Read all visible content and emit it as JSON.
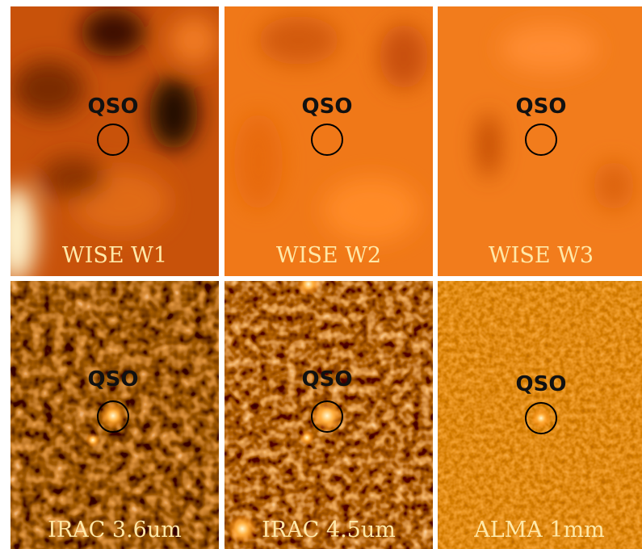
{
  "panels": [
    {
      "label": "WISE W1",
      "marker": "QSO"
    },
    {
      "label": "WISE W2",
      "marker": "QSO"
    },
    {
      "label": "WISE W3",
      "marker": "QSO"
    },
    {
      "label": "IRAC 3.6um",
      "marker": "QSO"
    },
    {
      "label": "IRAC 4.5um",
      "marker": "QSO"
    },
    {
      "label": "ALMA 1mm",
      "marker": "QSO"
    }
  ]
}
